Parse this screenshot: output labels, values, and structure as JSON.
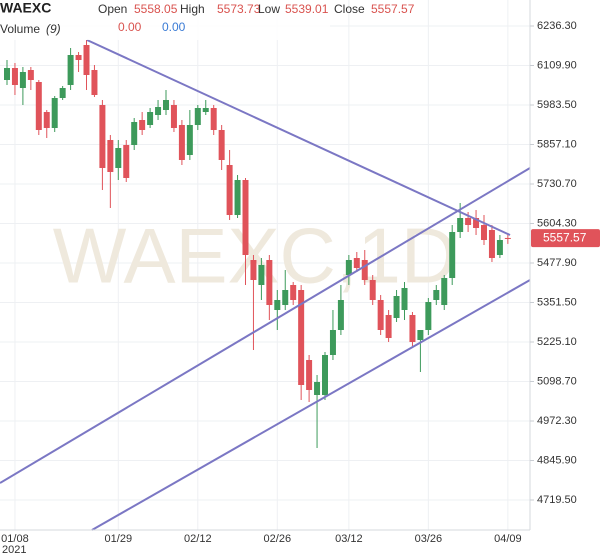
{
  "chart_data": {
    "type": "candlestick",
    "title": "WAEXC",
    "watermark": "WAEXC,1D",
    "legend": {
      "open_label": "Open",
      "open": 5558.05,
      "high_label": "High",
      "high": 5573.73,
      "low_label": "Low",
      "low": 5539.01,
      "close_label": "Close",
      "close": 5557.57,
      "volume_label": "Volume",
      "volume_period": "(9)",
      "volume_value_1": "0.00",
      "volume_value_2": "0.00"
    },
    "year_label": "2021",
    "categories": [
      null,
      "01/08",
      null,
      null,
      null,
      null,
      null,
      null,
      null,
      null,
      null,
      null,
      null,
      null,
      "01/29",
      null,
      null,
      null,
      null,
      null,
      null,
      null,
      null,
      null,
      "02/12",
      null,
      null,
      null,
      null,
      null,
      null,
      null,
      null,
      null,
      "02/26",
      null,
      null,
      null,
      null,
      null,
      null,
      null,
      null,
      "03/12",
      null,
      null,
      null,
      null,
      null,
      null,
      null,
      null,
      null,
      "03/26",
      null,
      null,
      null,
      null,
      null,
      null,
      null,
      null,
      null,
      "04/09"
    ],
    "open": [
      6063.5,
      6101.9,
      6037.9,
      6095.5,
      6057.1,
      5961.1,
      5909.9,
      6005.9,
      6047.5,
      6143.5,
      6175.5,
      6095.5,
      5983.5,
      5871.5,
      5781.9,
      5855.5,
      5855.5,
      5935.5,
      5919.5,
      5951.5,
      5967.5,
      5983.5,
      5919.5,
      5823.5,
      5919.5,
      5961.1,
      5973.9,
      5903.5,
      5791.5,
      5631.5,
      5743.5,
      5487.5,
      5407.5,
      5487.5,
      5327.5,
      5343.5,
      5407.5,
      5391.5,
      5167.5,
      5055.5,
      5055.5,
      5183.5,
      5263.5,
      5439.5,
      5493.9,
      5487.5,
      5423.5,
      5359.5,
      5311.5,
      5301.9,
      5327.5,
      5311.5,
      5231.5,
      5263.5,
      5359.5,
      5343.5,
      5429.9,
      5577.1,
      5621.9,
      5621.9,
      5599.5,
      5583.5,
      5503.5,
      5558.05
    ],
    "high": [
      6127.5,
      6117.9,
      6105.1,
      6105.1,
      6063.5,
      5967.5,
      6012.3,
      6044.3,
      6165.9,
      6153.1,
      6191.5,
      6111.5,
      5999.5,
      5887.5,
      5871.5,
      5871.5,
      5941.9,
      5961.1,
      5973.9,
      5999.5,
      6031.5,
      5999.5,
      5935.5,
      5967.5,
      5983.5,
      5999.5,
      5983.5,
      5919.5,
      5839.5,
      5759.5,
      5749.9,
      5503.5,
      5493.9,
      5503.5,
      5391.5,
      5455.5,
      5417.1,
      5407.5,
      5183.5,
      5119.5,
      5193.1,
      5327.5,
      5407.5,
      5503.5,
      5513.1,
      5519.5,
      5439.5,
      5375.5,
      5327.5,
      5391.5,
      5417.1,
      5321.1,
      5263.5,
      5365.9,
      5407.5,
      5439.5,
      5599.5,
      5669.9,
      5641.1,
      5647.5,
      5631.5,
      5599.5,
      5567.5,
      5573.73
    ],
    "low": [
      6047.5,
      6015.5,
      5983.5,
      6031.5,
      5887.5,
      5877.9,
      5897.1,
      5999.5,
      6031.5,
      6089.1,
      6031.5,
      6009.1,
      5711.5,
      5653.9,
      5743.5,
      5737.1,
      5839.5,
      5887.5,
      5909.9,
      5935.5,
      5951.5,
      5897.1,
      5791.5,
      5807.5,
      5903.5,
      5951.5,
      5887.5,
      5775.5,
      5615.5,
      5621.9,
      5407.5,
      5199.5,
      5359.5,
      5295.5,
      5263.5,
      5327.5,
      5343.5,
      5039.5,
      5033.1,
      4885.9,
      5039.5,
      5167.5,
      5247.5,
      5407.5,
      5449.1,
      5407.5,
      5343.5,
      5247.5,
      5225.1,
      5289.1,
      5295.5,
      5212.3,
      5129.1,
      5247.5,
      5343.5,
      5327.5,
      5407.5,
      5557.9,
      5577.1,
      5567.5,
      5535.5,
      5481.1,
      5493.9,
      5539.01
    ],
    "close": [
      6101.9,
      6047.5,
      6089.1,
      6063.5,
      5903.5,
      5909.9,
      6005.9,
      6037.9,
      6143.5,
      6127.5,
      6079.5,
      6015.5,
      5781.9,
      5769.1,
      5845.9,
      5749.9,
      5929.1,
      5903.5,
      5961.1,
      5977.1,
      5999.5,
      5909.9,
      5807.5,
      5919.5,
      5973.9,
      5973.9,
      5903.5,
      5807.5,
      5631.5,
      5743.5,
      5503.5,
      5423.5,
      5471.5,
      5343.5,
      5359.5,
      5391.5,
      5359.5,
      5087.5,
      5071.5,
      5097.1,
      5183.5,
      5263.5,
      5359.5,
      5487.5,
      5461.9,
      5423.5,
      5359.5,
      5263.5,
      5237.9,
      5372.3,
      5397.9,
      5225.1,
      5263.5,
      5353.1,
      5391.5,
      5429.9,
      5577.1,
      5621.9,
      5599.5,
      5589.9,
      5551.5,
      5493.9,
      5551.5,
      5557.57
    ],
    "up_color": "#3d9a5b",
    "down_color": "#e0535a",
    "ylim": [
      4623.5,
      6319.5
    ],
    "yticks": [
      {
        "value": 6236.3,
        "label": "6236.30"
      },
      {
        "value": 6109.9,
        "label": "6109.90"
      },
      {
        "value": 5983.5,
        "label": "5983.50"
      },
      {
        "value": 5857.1,
        "label": "5857.10"
      },
      {
        "value": 5730.7,
        "label": "5730.70"
      },
      {
        "value": 5604.3,
        "label": "5604.30"
      },
      {
        "value": 5477.9,
        "label": "5477.90"
      },
      {
        "value": 5351.5,
        "label": "5351.50"
      },
      {
        "value": 5225.1,
        "label": "5225.10"
      },
      {
        "value": 5098.7,
        "label": "5098.70"
      },
      {
        "value": 4972.3,
        "label": "4972.30"
      },
      {
        "value": 4845.9,
        "label": "4845.90"
      },
      {
        "value": 4719.5,
        "label": "4719.50"
      }
    ],
    "grid": true
  }
}
